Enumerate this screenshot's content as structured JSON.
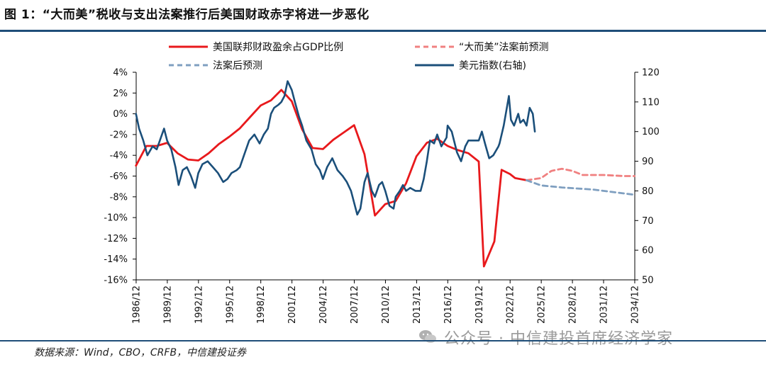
{
  "header": {
    "title": "图 1：“大而美”税收与支出法案推行后美国财政赤字将进一步恶化"
  },
  "footer": {
    "source": "数据来源：Wind，CBO，CRFB，中信建投证券",
    "watermark": "公众号 · 中信建投首席经济学家"
  },
  "chart_data": {
    "type": "line",
    "title": "",
    "x_ticks": [
      "1986/12",
      "1989/12",
      "1992/12",
      "1995/12",
      "1998/12",
      "2001/12",
      "2004/12",
      "2007/12",
      "2010/12",
      "2013/12",
      "2016/12",
      "2019/12",
      "2022/12",
      "2025/12",
      "2028/12",
      "2031/12",
      "2034/12"
    ],
    "x_range": [
      1986.92,
      2034.92
    ],
    "y_left": {
      "ticks": [
        "4%",
        "2%",
        "0%",
        "-2%",
        "-4%",
        "-6%",
        "-8%",
        "-10%",
        "-12%",
        "-14%",
        "-16%"
      ],
      "range": [
        -16,
        4
      ],
      "unit": "%"
    },
    "y_right": {
      "ticks": [
        "120",
        "110",
        "100",
        "90",
        "80",
        "70",
        "60",
        "50"
      ],
      "range": [
        50,
        120
      ]
    },
    "legend_position": "top",
    "series": [
      {
        "name": "美国联邦财政盈余占GDP比例",
        "axis": "left",
        "color": "#e8191c",
        "dash": "solid",
        "points": [
          [
            1986.9,
            -5.0
          ],
          [
            1987.9,
            -3.1
          ],
          [
            1988.9,
            -3.1
          ],
          [
            1989.9,
            -2.8
          ],
          [
            1990.9,
            -3.8
          ],
          [
            1991.9,
            -4.4
          ],
          [
            1992.9,
            -4.5
          ],
          [
            1993.9,
            -3.8
          ],
          [
            1994.9,
            -2.9
          ],
          [
            1995.9,
            -2.2
          ],
          [
            1996.9,
            -1.4
          ],
          [
            1997.9,
            -0.3
          ],
          [
            1998.9,
            0.8
          ],
          [
            1999.9,
            1.3
          ],
          [
            2000.9,
            2.3
          ],
          [
            2001.9,
            1.2
          ],
          [
            2002.9,
            -1.5
          ],
          [
            2003.9,
            -3.3
          ],
          [
            2004.9,
            -3.4
          ],
          [
            2005.9,
            -2.5
          ],
          [
            2006.9,
            -1.8
          ],
          [
            2007.9,
            -1.1
          ],
          [
            2008.9,
            -3.9
          ],
          [
            2009.9,
            -9.8
          ],
          [
            2010.9,
            -8.7
          ],
          [
            2011.9,
            -8.4
          ],
          [
            2012.9,
            -6.7
          ],
          [
            2013.9,
            -4.1
          ],
          [
            2014.9,
            -2.8
          ],
          [
            2015.9,
            -2.4
          ],
          [
            2016.9,
            -3.1
          ],
          [
            2017.9,
            -3.5
          ],
          [
            2018.9,
            -3.8
          ],
          [
            2019.9,
            -4.6
          ],
          [
            2020.4,
            -14.7
          ],
          [
            2021.4,
            -12.3
          ],
          [
            2022.1,
            -5.4
          ],
          [
            2022.9,
            -5.8
          ],
          [
            2023.4,
            -6.2
          ],
          [
            2024.5,
            -6.4
          ]
        ]
      },
      {
        "name": "“大而美”法案前预测",
        "axis": "left",
        "color": "#f08080",
        "dash": "dashed",
        "points": [
          [
            2024.5,
            -6.4
          ],
          [
            2025.9,
            -6.2
          ],
          [
            2026.9,
            -5.5
          ],
          [
            2027.9,
            -5.3
          ],
          [
            2028.9,
            -5.5
          ],
          [
            2029.9,
            -5.9
          ],
          [
            2031.9,
            -5.9
          ],
          [
            2033.9,
            -6.0
          ],
          [
            2034.9,
            -6.0
          ]
        ]
      },
      {
        "name": "法案后预测",
        "axis": "left",
        "color": "#7f9fc0",
        "dash": "dashed",
        "points": [
          [
            2024.5,
            -6.4
          ],
          [
            2025.9,
            -6.9
          ],
          [
            2027.9,
            -7.1
          ],
          [
            2030.9,
            -7.3
          ],
          [
            2034.9,
            -7.8
          ]
        ]
      },
      {
        "name": "美元指数(右轴)",
        "axis": "right",
        "color": "#1b4f7a",
        "dash": "solid",
        "points": [
          [
            1986.9,
            106
          ],
          [
            1987.2,
            101
          ],
          [
            1987.6,
            97
          ],
          [
            1988.0,
            92
          ],
          [
            1988.5,
            95
          ],
          [
            1988.9,
            94
          ],
          [
            1989.2,
            97
          ],
          [
            1989.6,
            101
          ],
          [
            1989.9,
            97
          ],
          [
            1990.3,
            94
          ],
          [
            1990.7,
            88
          ],
          [
            1991.0,
            82
          ],
          [
            1991.4,
            87
          ],
          [
            1991.8,
            88
          ],
          [
            1992.2,
            85
          ],
          [
            1992.6,
            81
          ],
          [
            1992.9,
            86
          ],
          [
            1993.3,
            89
          ],
          [
            1993.8,
            90
          ],
          [
            1994.3,
            88
          ],
          [
            1994.8,
            86
          ],
          [
            1995.3,
            83
          ],
          [
            1995.7,
            84
          ],
          [
            1996.1,
            86
          ],
          [
            1996.6,
            87
          ],
          [
            1996.9,
            88
          ],
          [
            1997.3,
            92
          ],
          [
            1997.8,
            97
          ],
          [
            1998.3,
            99
          ],
          [
            1998.8,
            96
          ],
          [
            1999.2,
            99
          ],
          [
            1999.6,
            101
          ],
          [
            1999.9,
            106
          ],
          [
            2000.2,
            108
          ],
          [
            2000.6,
            109
          ],
          [
            2000.9,
            110
          ],
          [
            2001.2,
            112
          ],
          [
            2001.5,
            117
          ],
          [
            2001.9,
            114
          ],
          [
            2002.2,
            110
          ],
          [
            2002.6,
            105
          ],
          [
            2002.9,
            102
          ],
          [
            2003.3,
            97
          ],
          [
            2003.8,
            94
          ],
          [
            2004.2,
            89
          ],
          [
            2004.6,
            87
          ],
          [
            2004.9,
            84
          ],
          [
            2005.3,
            88
          ],
          [
            2005.8,
            91
          ],
          [
            2006.3,
            87
          ],
          [
            2006.8,
            85
          ],
          [
            2007.2,
            83
          ],
          [
            2007.6,
            80
          ],
          [
            2007.9,
            76
          ],
          [
            2008.2,
            72
          ],
          [
            2008.5,
            74
          ],
          [
            2008.9,
            83
          ],
          [
            2009.2,
            86
          ],
          [
            2009.6,
            80
          ],
          [
            2009.9,
            78
          ],
          [
            2010.3,
            82
          ],
          [
            2010.6,
            83
          ],
          [
            2010.9,
            80
          ],
          [
            2011.3,
            75
          ],
          [
            2011.7,
            74
          ],
          [
            2011.9,
            78
          ],
          [
            2012.3,
            80
          ],
          [
            2012.6,
            82
          ],
          [
            2012.9,
            80
          ],
          [
            2013.3,
            81
          ],
          [
            2013.8,
            80
          ],
          [
            2014.3,
            80
          ],
          [
            2014.6,
            84
          ],
          [
            2014.9,
            90
          ],
          [
            2015.2,
            97
          ],
          [
            2015.6,
            96
          ],
          [
            2015.9,
            99
          ],
          [
            2016.3,
            95
          ],
          [
            2016.8,
            98
          ],
          [
            2016.9,
            102
          ],
          [
            2017.3,
            100
          ],
          [
            2017.8,
            93
          ],
          [
            2018.2,
            90
          ],
          [
            2018.6,
            95
          ],
          [
            2018.9,
            97
          ],
          [
            2019.4,
            97
          ],
          [
            2019.9,
            97
          ],
          [
            2020.2,
            100
          ],
          [
            2020.5,
            96
          ],
          [
            2020.9,
            91
          ],
          [
            2021.3,
            92
          ],
          [
            2021.8,
            95
          ],
          [
            2021.9,
            96
          ],
          [
            2022.3,
            102
          ],
          [
            2022.6,
            108
          ],
          [
            2022.8,
            112
          ],
          [
            2023.0,
            104
          ],
          [
            2023.3,
            102
          ],
          [
            2023.7,
            106
          ],
          [
            2023.9,
            103
          ],
          [
            2024.2,
            104
          ],
          [
            2024.5,
            102
          ],
          [
            2024.8,
            108
          ],
          [
            2025.1,
            106
          ],
          [
            2025.3,
            100
          ]
        ]
      }
    ]
  }
}
